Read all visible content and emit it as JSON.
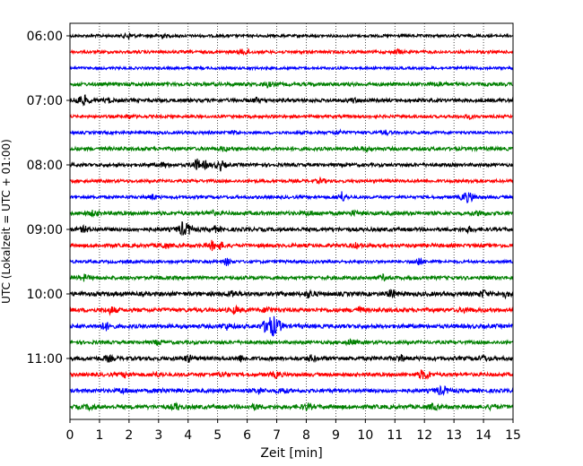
{
  "chart_data": {
    "type": "line",
    "title": "",
    "xlabel": "Zeit  [min]",
    "ylabel": "UTC (Lokalzeit = UTC + 01:00)",
    "xlim": [
      0,
      15
    ],
    "x_ticks": [
      "0",
      "1",
      "2",
      "3",
      "4",
      "5",
      "6",
      "7",
      "8",
      "9",
      "10",
      "11",
      "12",
      "13",
      "14",
      "15"
    ],
    "y_ticks": [
      {
        "label": "06:00",
        "row": 0
      },
      {
        "label": "07:00",
        "row": 4
      },
      {
        "label": "08:00",
        "row": 8
      },
      {
        "label": "09:00",
        "row": 12
      },
      {
        "label": "10:00",
        "row": 16
      },
      {
        "label": "11:00",
        "row": 20
      }
    ],
    "grid": "vertical dotted lines at each minute",
    "legend": "none",
    "row_colors": [
      "#000000",
      "#ff0000",
      "#0000ff",
      "#008000"
    ],
    "row_interval_min": 15,
    "rows": [
      {
        "start": "06:00",
        "noise": 0.25,
        "events": [
          [
            2.0,
            1.6
          ],
          [
            3.1,
            1.2
          ]
        ]
      },
      {
        "start": "06:15",
        "noise": 0.3,
        "events": [
          [
            5.8,
            1.0
          ],
          [
            6.0,
            0.9
          ],
          [
            11.1,
            1.3
          ]
        ]
      },
      {
        "start": "06:30",
        "noise": 0.2,
        "events": []
      },
      {
        "start": "06:45",
        "noise": 0.5,
        "events": [
          [
            6.7,
            1.2
          ],
          [
            12.5,
            1.0
          ]
        ]
      },
      {
        "start": "07:00",
        "noise": 0.5,
        "events": [
          [
            0.3,
            2.2
          ],
          [
            0.5,
            1.8
          ],
          [
            1.3,
            1.0
          ],
          [
            6.3,
            1.0
          ],
          [
            9.6,
            1.0
          ]
        ]
      },
      {
        "start": "07:15",
        "noise": 0.3,
        "events": [
          [
            2.0,
            1.0
          ],
          [
            13.5,
            1.0
          ]
        ]
      },
      {
        "start": "07:30",
        "noise": 0.3,
        "events": [
          [
            5.6,
            1.0
          ],
          [
            9.1,
            1.0
          ],
          [
            10.7,
            1.0
          ]
        ]
      },
      {
        "start": "07:45",
        "noise": 0.5,
        "events": [
          [
            5.2,
            1.0
          ],
          [
            10.0,
            1.0
          ]
        ]
      },
      {
        "start": "08:00",
        "noise": 0.45,
        "events": [
          [
            3.2,
            1.2
          ],
          [
            4.3,
            2.8
          ],
          [
            4.6,
            1.5
          ],
          [
            5.1,
            2.5
          ]
        ]
      },
      {
        "start": "08:15",
        "noise": 0.35,
        "events": [
          [
            8.5,
            1.2
          ],
          [
            13.7,
            1.0
          ]
        ]
      },
      {
        "start": "08:30",
        "noise": 0.35,
        "events": [
          [
            2.8,
            1.3
          ],
          [
            9.2,
            2.6
          ],
          [
            13.4,
            2.6
          ],
          [
            13.6,
            1.5
          ]
        ]
      },
      {
        "start": "08:45",
        "noise": 0.6,
        "events": [
          [
            0.8,
            1.3
          ],
          [
            4.8,
            1.2
          ],
          [
            8.1,
            1.0
          ],
          [
            9.6,
            1.0
          ],
          [
            13.9,
            1.2
          ]
        ]
      },
      {
        "start": "09:00",
        "noise": 0.6,
        "events": [
          [
            0.5,
            1.5
          ],
          [
            3.8,
            3.0
          ],
          [
            4.0,
            2.2
          ],
          [
            4.9,
            1.4
          ],
          [
            13.5,
            1.2
          ]
        ]
      },
      {
        "start": "09:15",
        "noise": 0.55,
        "events": [
          [
            3.2,
            1.3
          ],
          [
            4.8,
            2.0
          ],
          [
            5.1,
            1.6
          ],
          [
            9.7,
            1.2
          ]
        ]
      },
      {
        "start": "09:30",
        "noise": 0.3,
        "events": [
          [
            5.3,
            1.8
          ],
          [
            11.8,
            2.0
          ]
        ]
      },
      {
        "start": "09:45",
        "noise": 0.5,
        "events": [
          [
            0.5,
            1.5
          ],
          [
            10.6,
            1.2
          ]
        ]
      },
      {
        "start": "10:00",
        "noise": 0.75,
        "events": [
          [
            5.5,
            1.8
          ],
          [
            8.1,
            1.9
          ],
          [
            10.9,
            2.2
          ],
          [
            14.0,
            1.9
          ],
          [
            14.7,
            1.5
          ]
        ]
      },
      {
        "start": "10:15",
        "noise": 0.7,
        "events": [
          [
            1.4,
            1.8
          ],
          [
            5.6,
            1.6
          ],
          [
            6.7,
            1.4
          ],
          [
            9.8,
            1.4
          ],
          [
            13.4,
            1.2
          ]
        ]
      },
      {
        "start": "10:30",
        "noise": 0.7,
        "events": [
          [
            1.2,
            2.2
          ],
          [
            5.3,
            1.5
          ],
          [
            6.7,
            5.5
          ],
          [
            6.9,
            3.8
          ],
          [
            7.1,
            1.6
          ]
        ]
      },
      {
        "start": "10:45",
        "noise": 0.45,
        "events": [
          [
            3.0,
            1.3
          ],
          [
            9.5,
            1.5
          ]
        ]
      },
      {
        "start": "11:00",
        "noise": 0.65,
        "events": [
          [
            1.3,
            1.4
          ],
          [
            4.0,
            1.6
          ],
          [
            5.8,
            1.4
          ],
          [
            8.2,
            1.5
          ],
          [
            11.2,
            1.5
          ],
          [
            14.0,
            1.3
          ]
        ]
      },
      {
        "start": "11:15",
        "noise": 0.55,
        "events": [
          [
            1.9,
            1.4
          ],
          [
            2.9,
            1.2
          ],
          [
            5.2,
            1.4
          ],
          [
            7.0,
            1.4
          ],
          [
            11.9,
            1.8
          ],
          [
            12.1,
            1.5
          ]
        ]
      },
      {
        "start": "11:30",
        "noise": 0.55,
        "events": [
          [
            1.8,
            1.3
          ],
          [
            3.1,
            1.2
          ],
          [
            6.4,
            1.4
          ],
          [
            7.2,
            1.5
          ],
          [
            12.5,
            1.6
          ],
          [
            12.7,
            1.3
          ]
        ]
      },
      {
        "start": "11:45",
        "noise": 0.7,
        "events": [
          [
            0.7,
            1.4
          ],
          [
            3.6,
            1.6
          ],
          [
            6.3,
            1.3
          ],
          [
            8.0,
            1.4
          ],
          [
            12.3,
            1.4
          ],
          [
            14.3,
            1.2
          ]
        ]
      }
    ]
  }
}
